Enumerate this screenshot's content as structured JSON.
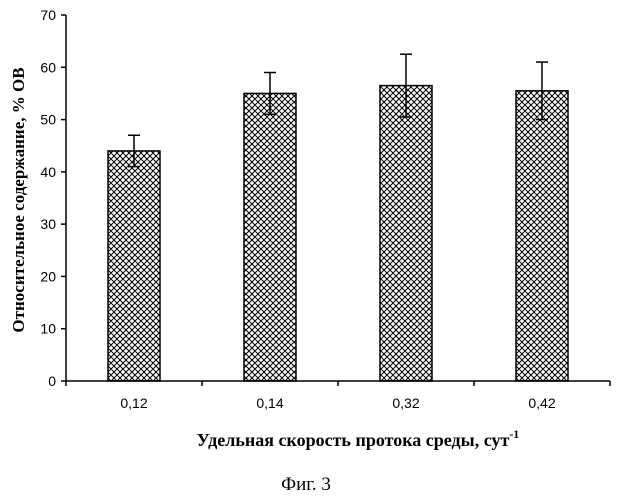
{
  "chart_data": {
    "type": "bar",
    "categories": [
      "0,12",
      "0,14",
      "0,32",
      "0,42"
    ],
    "values": [
      44,
      55,
      56.5,
      55.5
    ],
    "errors": [
      3,
      4,
      6,
      5.5
    ],
    "xlabel": "Удельная скорость протока среды, сут",
    "xlabel_superscript": "-1",
    "ylabel": "Относительное содержание, % ОВ",
    "ylim": [
      0,
      70
    ],
    "yticks": [
      0,
      10,
      20,
      30,
      40,
      50,
      60,
      70
    ],
    "grid": false,
    "bar_fill": "crosshatch",
    "colors": {
      "bar_stroke": "#000000",
      "hatch": "#000000",
      "background": "#ffffff"
    }
  },
  "caption": "Фиг. 3"
}
